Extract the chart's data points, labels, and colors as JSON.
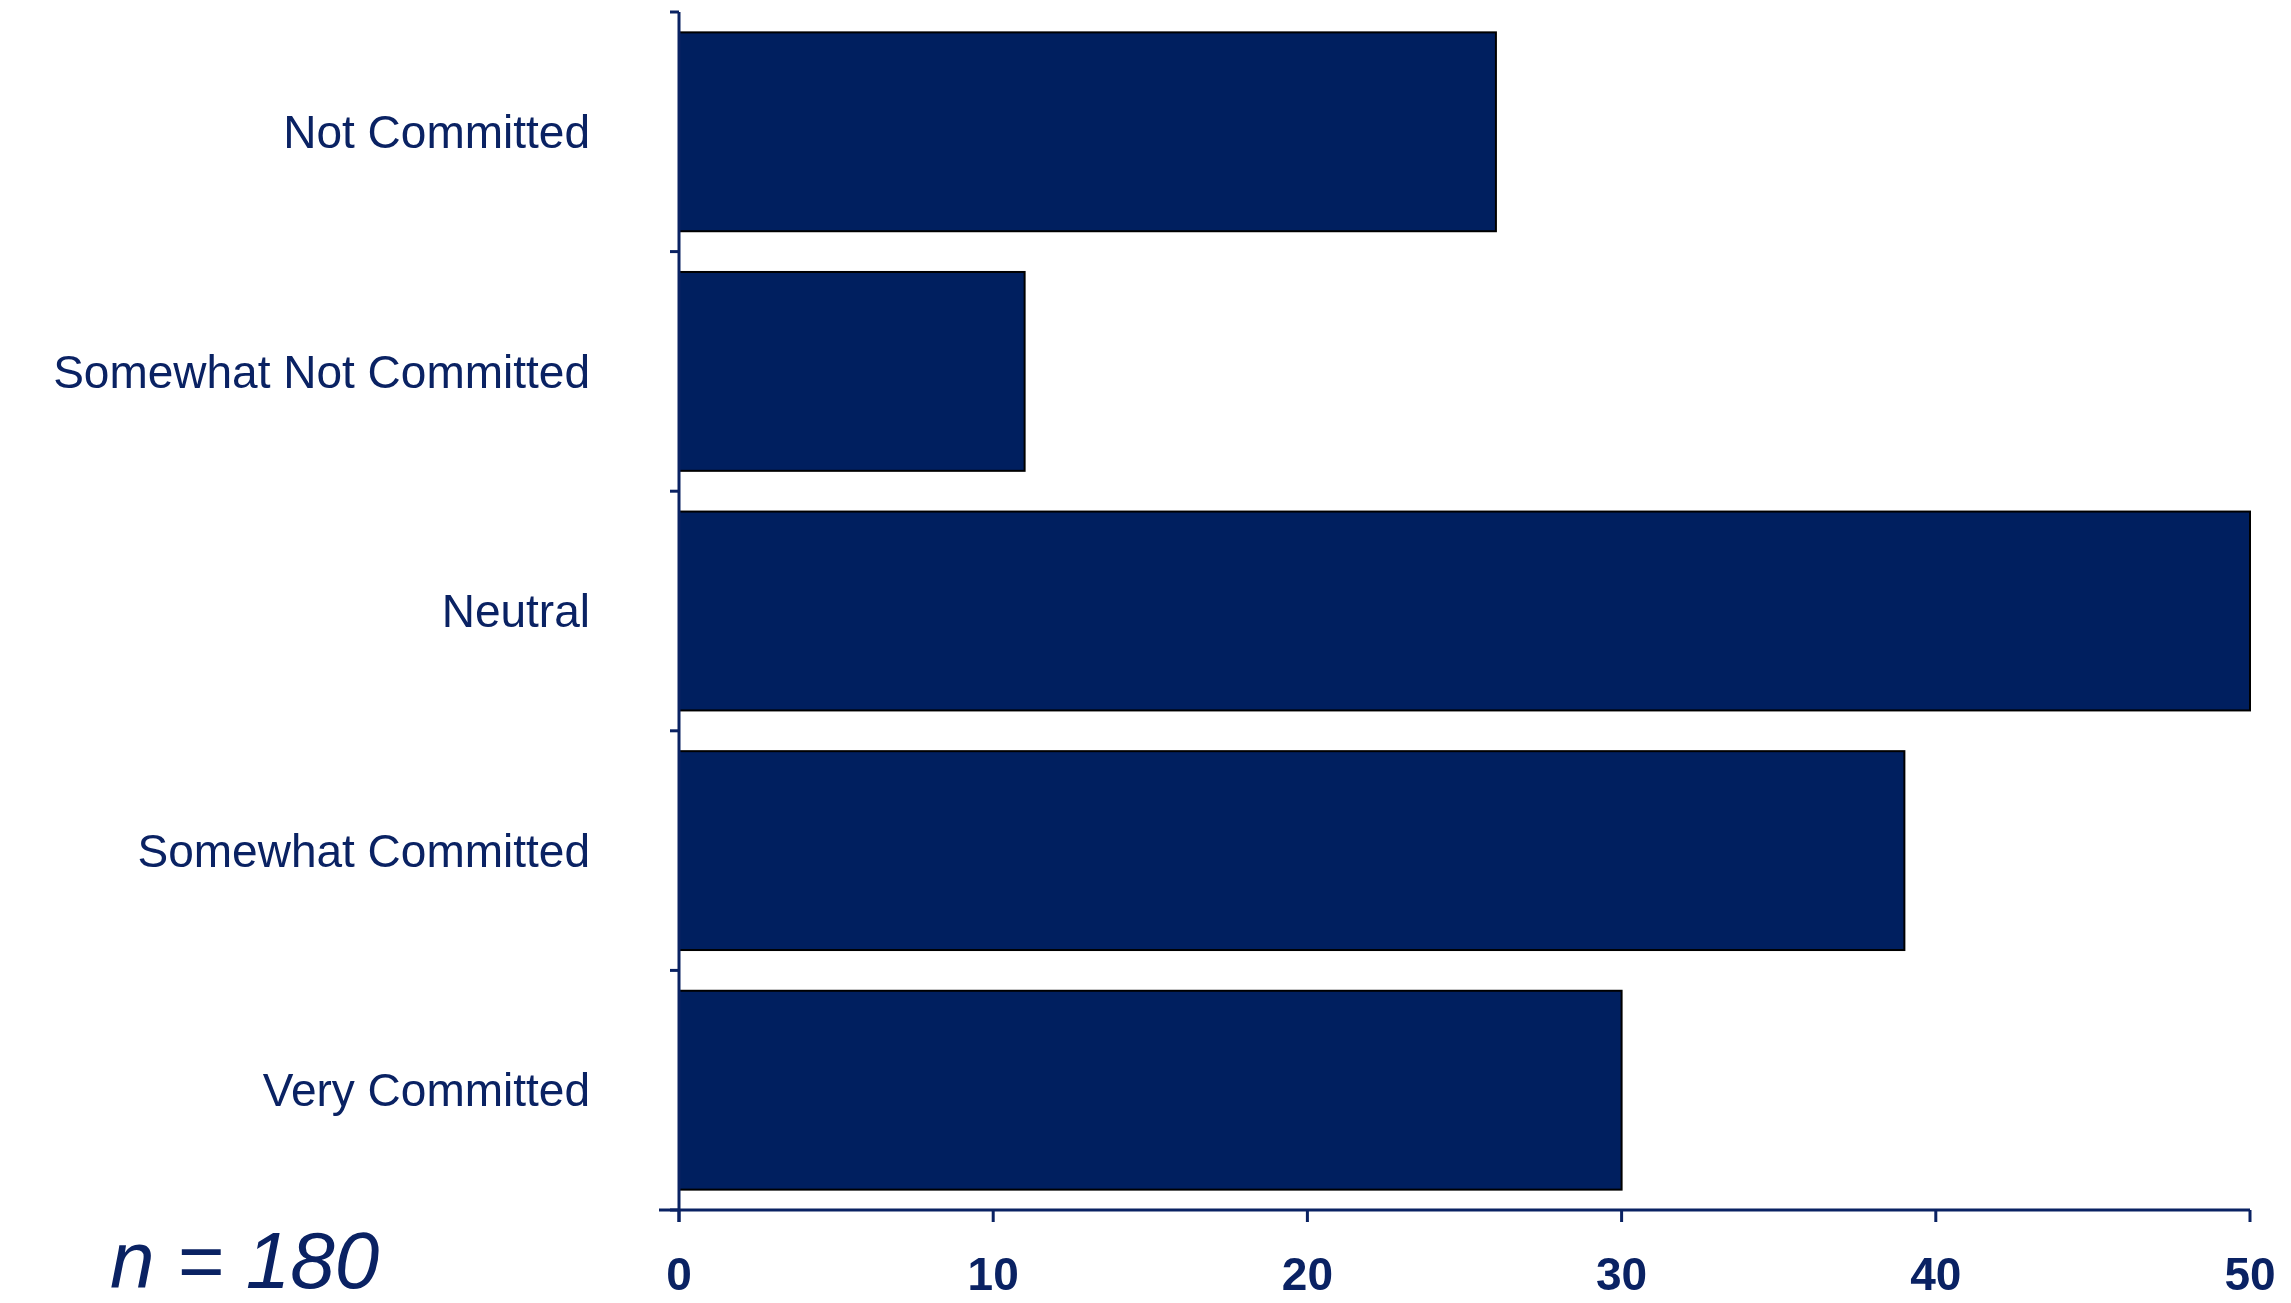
{
  "chart_data": {
    "type": "bar",
    "orientation": "horizontal",
    "categories": [
      "Not Committed",
      "Somewhat Not Committed",
      "Neutral",
      "Somewhat Committed",
      "Very Committed"
    ],
    "values": [
      26,
      11,
      50,
      39,
      30
    ],
    "color": "#001f5f",
    "xlim": [
      0,
      50
    ],
    "xticks": [
      0,
      10,
      20,
      30,
      40,
      50
    ],
    "annotations": [
      "n = 180"
    ]
  }
}
